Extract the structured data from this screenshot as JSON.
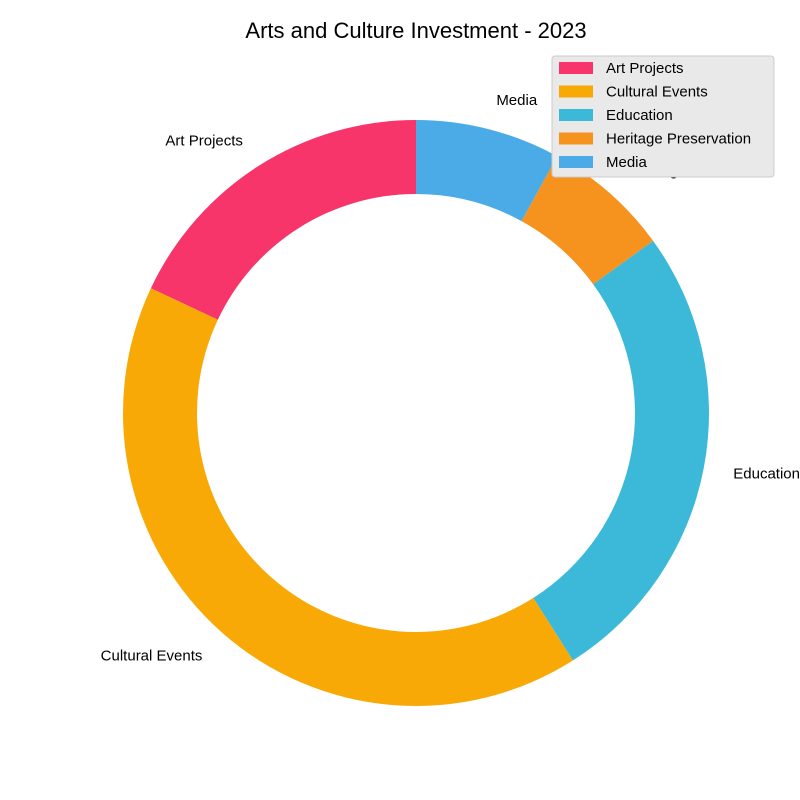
{
  "chart_data": {
    "type": "pie",
    "variant": "donut",
    "title": "Arts and Culture Investment - 2023",
    "categories": [
      "Art Projects",
      "Cultural Events",
      "Education",
      "Heritage Preservation",
      "Media"
    ],
    "values": [
      18,
      41,
      26,
      7,
      8
    ],
    "colors": [
      "#f7356a",
      "#f8a906",
      "#3cb9d9",
      "#f6921e",
      "#4aabe6"
    ],
    "start_angle_deg": 90,
    "direction": "counterclockwise",
    "legend": {
      "position": "top-right",
      "entries": [
        "Art Projects",
        "Cultural Events",
        "Education",
        "Heritage Preservation",
        "Media"
      ]
    }
  }
}
